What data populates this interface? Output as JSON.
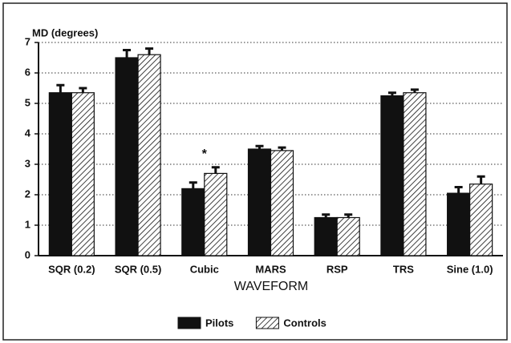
{
  "chart_data": {
    "type": "bar",
    "y_label": "MD (degrees)",
    "x_label": "WAVEFORM",
    "categories": [
      "SQR (0.2)",
      "SQR (0.5)",
      "Cubic",
      "MARS",
      "RSP",
      "TRS",
      "Sine (1.0)"
    ],
    "series": [
      {
        "name": "Pilots",
        "color": "#111111",
        "fill": "solid",
        "values": [
          5.35,
          6.5,
          2.2,
          3.5,
          1.25,
          5.25,
          2.05
        ],
        "errors": [
          0.25,
          0.25,
          0.2,
          0.1,
          0.1,
          0.1,
          0.2
        ]
      },
      {
        "name": "Controls",
        "color": "#111111",
        "fill": "hatch",
        "values": [
          5.35,
          6.6,
          2.7,
          3.45,
          1.25,
          5.35,
          2.35
        ],
        "errors": [
          0.15,
          0.2,
          0.2,
          0.1,
          0.1,
          0.1,
          0.25
        ]
      }
    ],
    "annotations": [
      {
        "text": "*",
        "category": 2
      }
    ],
    "ylim": [
      0,
      7
    ],
    "yticks": [
      0,
      1,
      2,
      3,
      4,
      5,
      6,
      7
    ],
    "grid": true,
    "legend": "bottom"
  }
}
